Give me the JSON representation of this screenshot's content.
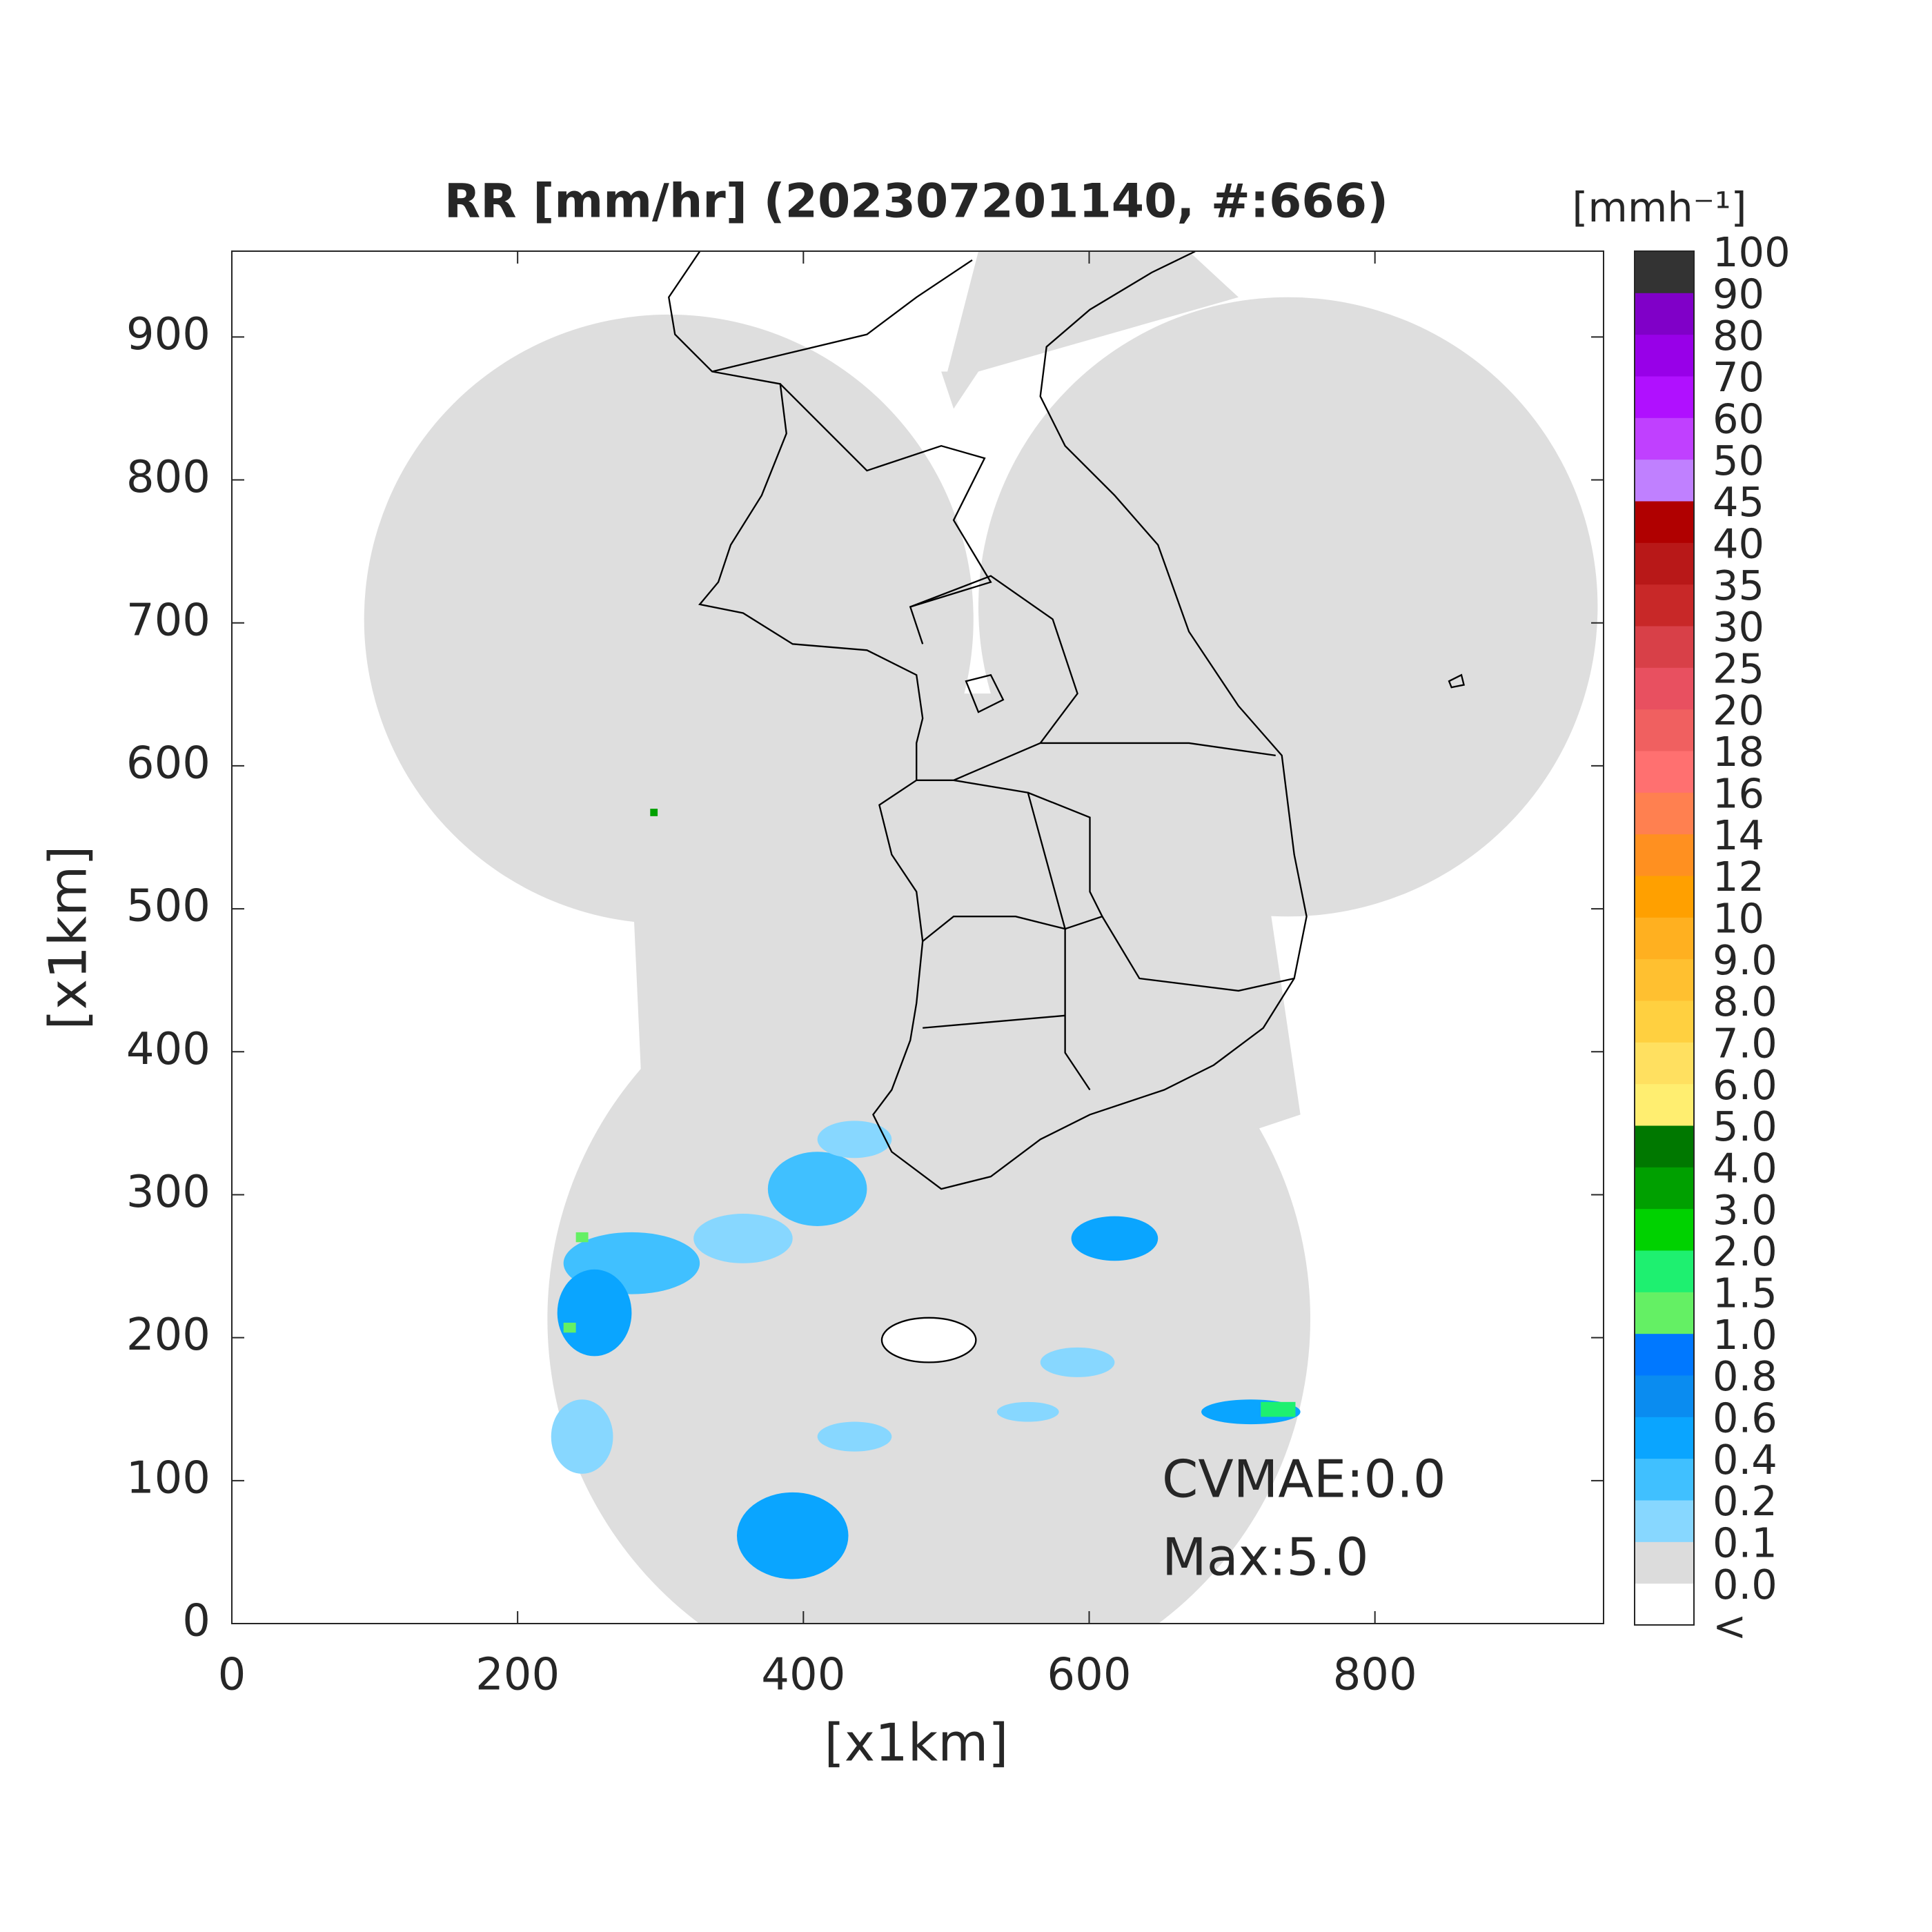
{
  "chart_data": {
    "type": "map",
    "title": "RR [mm/hr] (202307201140, #:666)",
    "xlabel": "[x1km]",
    "ylabel": "[x1km]",
    "xlim": [
      0,
      960
    ],
    "ylim": [
      0,
      960
    ],
    "xticks": [
      0,
      200,
      400,
      600,
      800
    ],
    "yticks": [
      0,
      100,
      200,
      300,
      400,
      500,
      600,
      700,
      800,
      900
    ],
    "colorbar": {
      "label": "[mmh⁻¹]",
      "levels": [
        "<",
        "0.0",
        "0.1",
        "0.2",
        "0.4",
        "0.6",
        "0.8",
        "1.0",
        "1.5",
        "2.0",
        "3.0",
        "4.0",
        "5.0",
        "6.0",
        "7.0",
        "8.0",
        "9.0",
        "10",
        "12",
        "14",
        "16",
        "18",
        "20",
        "25",
        "30",
        "35",
        "40",
        "45",
        "50",
        "60",
        "70",
        "80",
        "90",
        "100"
      ],
      "colors": [
        "#ffffff",
        "#dcdcdc",
        "#87d7ff",
        "#40c0ff",
        "#0aa5ff",
        "#0a8cf0",
        "#0078ff",
        "#64f064",
        "#1ef070",
        "#00d200",
        "#00a000",
        "#007800",
        "#ffee70",
        "#ffe060",
        "#ffd040",
        "#ffc030",
        "#ffb020",
        "#ffa000",
        "#ff9020",
        "#ff8050",
        "#ff7070",
        "#f06060",
        "#e85060",
        "#d84048",
        "#c82828",
        "#b81818",
        "#b00000",
        "#c080ff",
        "#c040ff",
        "#b010ff",
        "#9800e8",
        "#8000c8",
        "#333333"
      ]
    },
    "annotations": [
      "CVMAE:0.0",
      "Max:5.0"
    ]
  }
}
